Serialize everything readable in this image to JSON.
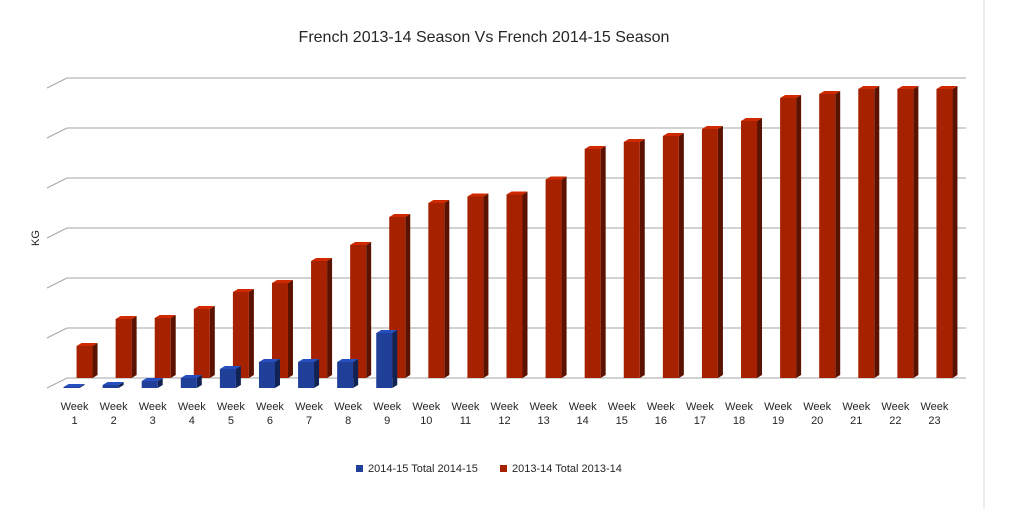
{
  "chart_data": {
    "type": "bar",
    "title": "French 2013-14 Season Vs French 2014-15 Season",
    "xlabel": "",
    "ylabel": "KG",
    "categories": [
      [
        "Week",
        "1"
      ],
      [
        "Week",
        "2"
      ],
      [
        "Week",
        "3"
      ],
      [
        "Week",
        "4"
      ],
      [
        "Week",
        "5"
      ],
      [
        "Week",
        "6"
      ],
      [
        "Week",
        "7"
      ],
      [
        "Week",
        "8"
      ],
      [
        "Week",
        "9"
      ],
      [
        "Week",
        "10"
      ],
      [
        "Week",
        "11"
      ],
      [
        "Week",
        "12"
      ],
      [
        "Week",
        "13"
      ],
      [
        "Week",
        "14"
      ],
      [
        "Week",
        "15"
      ],
      [
        "Week",
        "16"
      ],
      [
        "Week",
        "17"
      ],
      [
        "Week",
        "18"
      ],
      [
        "Week",
        "19"
      ],
      [
        "Week",
        "20"
      ],
      [
        "Week",
        "21"
      ],
      [
        "Week",
        "22"
      ],
      [
        "Week",
        "23"
      ]
    ],
    "series": [
      {
        "name": "2014-15 Total 2014-15",
        "color": "#1f3f99",
        "values": [
          0.02,
          0.06,
          0.14,
          0.2,
          0.38,
          0.52,
          0.52,
          0.52,
          1.1,
          null,
          null,
          null,
          null,
          null,
          null,
          null,
          null,
          null,
          null,
          null,
          null,
          null,
          null
        ]
      },
      {
        "name": "2013-14 Total 2013-14",
        "color": "#a62100",
        "values": [
          0.64,
          1.18,
          1.2,
          1.38,
          1.72,
          1.9,
          2.34,
          2.66,
          3.22,
          3.5,
          3.63,
          3.67,
          3.97,
          4.58,
          4.72,
          4.84,
          4.98,
          5.14,
          5.6,
          5.68,
          5.78,
          5.78,
          5.78
        ]
      }
    ],
    "ylim": [
      0,
      6
    ],
    "grid": true,
    "y_tick_labels_shown": false,
    "legend": "bottom"
  }
}
